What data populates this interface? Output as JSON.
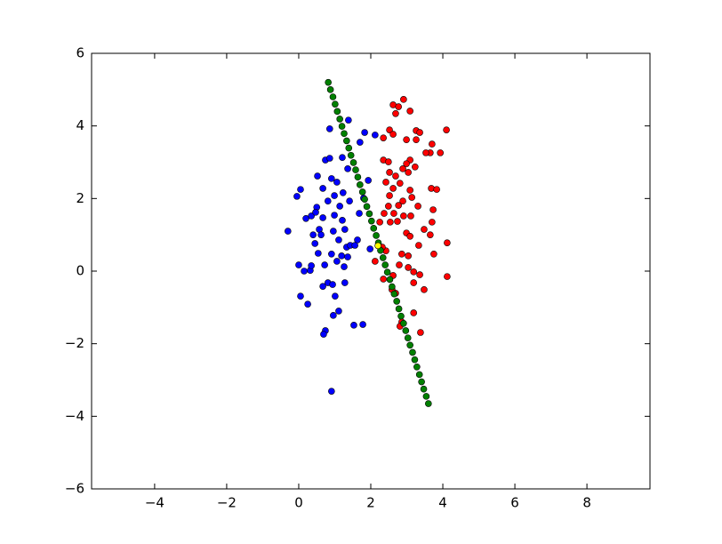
{
  "chart_data": {
    "type": "scatter",
    "xlim": [
      -5.75,
      9.75
    ],
    "ylim": [
      -6,
      6
    ],
    "xticks": [
      -4,
      -2,
      0,
      2,
      4,
      6,
      8
    ],
    "yticks": [
      -6,
      -4,
      -2,
      0,
      2,
      4,
      6
    ],
    "grid": false,
    "series": [
      {
        "color": "#0000ff",
        "x": [
          -0.3,
          -0.05,
          0.05,
          0,
          0.05,
          0.25,
          0.15,
          0.32,
          0.35,
          0.2,
          0.35,
          0.5,
          0.47,
          0.4,
          0.45,
          0.52,
          0.67,
          0.74,
          0.86,
          0.86,
          0.91,
          0.81,
          0.99,
          0.99,
          0.96,
          0.91,
          1.06,
          0.72,
          0.67,
          0.81,
          0.94,
          1.01,
          0.96,
          1.11,
          0.74,
          0.69,
          0.91,
          1.21,
          1.38,
          1.36,
          1.14,
          1.21,
          1.28,
          1.33,
          1.36,
          1.26,
          1.28,
          1.43,
          1.53,
          1.7,
          1.83,
          2.12,
          1.8,
          1.93,
          1.68,
          1.63,
          1.56,
          1.78,
          1.98,
          0.57,
          0.62,
          1.11,
          1.19,
          1.06,
          1.23,
          0.67,
          1.41,
          0.54
        ],
        "values": [
          1.1,
          2.06,
          2.25,
          0.17,
          -0.69,
          -0.91,
          0,
          0.02,
          0.15,
          1.45,
          1.52,
          1.76,
          1.62,
          1.0,
          0.76,
          2.62,
          2.28,
          3.06,
          3.11,
          3.92,
          2.55,
          1.93,
          2.08,
          1.54,
          1.1,
          0.47,
          0.27,
          0.17,
          -0.42,
          -0.32,
          -0.37,
          -0.69,
          -1.22,
          -1.1,
          -1.64,
          -1.74,
          -3.31,
          3.13,
          4.16,
          2.82,
          1.79,
          1.4,
          1.15,
          0.66,
          0.39,
          0.12,
          -0.32,
          0.71,
          -1.49,
          3.55,
          3.82,
          3.75,
          2.01,
          2.5,
          1.59,
          0.86,
          0.71,
          -1.47,
          0.61,
          1.15,
          1.0,
          0.86,
          0.42,
          2.45,
          2.16,
          1.47,
          1.93,
          0.49
        ]
      },
      {
        "color": "#ff0000",
        "x": [
          2.91,
          2.62,
          2.77,
          2.69,
          3.09,
          2.35,
          2.52,
          2.62,
          2.99,
          3.26,
          3.36,
          3.26,
          3.7,
          4.1,
          3.65,
          3.93,
          3.53,
          3.09,
          2.99,
          2.35,
          2.49,
          2.89,
          3.04,
          3.23,
          2.52,
          2.69,
          2.42,
          2.62,
          2.81,
          3.09,
          3.68,
          3.83,
          2.52,
          2.89,
          3.14,
          3.31,
          2.77,
          2.49,
          2.37,
          2.64,
          2.91,
          3.11,
          3.73,
          3.7,
          2.54,
          2.74,
          2.99,
          3.48,
          3.65,
          3.09,
          3.33,
          4.12,
          3.75,
          2.86,
          3.04,
          2.12,
          2.42,
          2.79,
          3.04,
          3.19,
          3.36,
          4.12,
          2.62,
          2.35,
          2.59,
          2.69,
          3.19,
          3.48,
          3.19,
          2.86,
          2.81,
          3.38,
          2.25,
          2.32
        ],
        "values": [
          4.73,
          4.58,
          4.53,
          4.34,
          4.41,
          3.67,
          3.89,
          3.77,
          3.62,
          3.87,
          3.82,
          3.62,
          3.5,
          3.89,
          3.26,
          3.26,
          3.26,
          3.06,
          2.96,
          3.06,
          3.01,
          2.82,
          2.72,
          2.87,
          2.72,
          2.62,
          2.45,
          2.28,
          2.42,
          2.23,
          2.28,
          2.25,
          2.08,
          1.93,
          2.03,
          1.79,
          1.81,
          1.79,
          1.59,
          1.59,
          1.52,
          1.52,
          1.69,
          1.35,
          1.35,
          1.37,
          1.05,
          1.15,
          1.0,
          0.96,
          0.71,
          0.78,
          0.47,
          0.47,
          0.42,
          0.27,
          0.56,
          0.17,
          0.1,
          -0.02,
          -0.1,
          -0.15,
          -0.12,
          -0.22,
          -0.51,
          -0.61,
          -0.32,
          -0.51,
          -1.15,
          -1.4,
          -1.52,
          -1.69,
          1.35,
          0.66
        ]
      },
      {
        "color": "#008000",
        "x": [
          0.82,
          0.88,
          0.95,
          1.01,
          1.07,
          1.14,
          1.2,
          1.26,
          1.33,
          1.39,
          1.45,
          1.52,
          1.58,
          1.64,
          1.7,
          1.77,
          1.83,
          1.89,
          1.96,
          2.02,
          2.08,
          2.15,
          2.21,
          2.27,
          2.34,
          2.4,
          2.46,
          2.53,
          2.59,
          2.65,
          2.72,
          2.78,
          2.84,
          2.91,
          2.97,
          3.03,
          3.09,
          3.16,
          3.22,
          3.28,
          3.35,
          3.41,
          3.47,
          3.54,
          3.6
        ],
        "values": [
          5.2,
          5.0,
          4.8,
          4.6,
          4.4,
          4.19,
          3.99,
          3.79,
          3.59,
          3.39,
          3.19,
          2.99,
          2.79,
          2.59,
          2.38,
          2.18,
          1.98,
          1.78,
          1.58,
          1.38,
          1.18,
          0.98,
          0.78,
          0.57,
          0.37,
          0.17,
          -0.03,
          -0.23,
          -0.43,
          -0.63,
          -0.83,
          -1.04,
          -1.24,
          -1.44,
          -1.64,
          -1.84,
          -2.04,
          -2.24,
          -2.44,
          -2.64,
          -2.85,
          -3.05,
          -3.25,
          -3.45,
          -3.65
        ]
      },
      {
        "color": "#ffff00",
        "x": [
          2.2
        ],
        "values": [
          0.7
        ]
      }
    ]
  }
}
